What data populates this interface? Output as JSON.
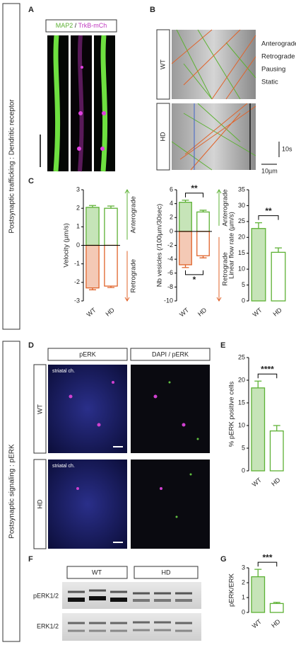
{
  "panel_letters": [
    "A",
    "B",
    "C",
    "D",
    "E",
    "F",
    "G"
  ],
  "side_titles": [
    "Postsynaptic trafficking : Dendritic receptor",
    "Postsynaptic signaling : pERK"
  ],
  "panel_a": {
    "header": [
      "MAP2",
      "/",
      "TrkB-mCh"
    ]
  },
  "panel_b": {
    "rows": [
      "WT",
      "HD"
    ],
    "legend": [
      {
        "label": "Anterograde",
        "color": "#5db134"
      },
      {
        "label": "Retrograde",
        "color": "#e0632a"
      },
      {
        "label": "Pausing",
        "color": "#3f63c9"
      },
      {
        "label": "Static",
        "color": "#666666"
      }
    ],
    "scale_time": "10s",
    "scale_space": "10µm"
  },
  "panel_d": {
    "headers": [
      "pERK",
      "DAPI / pERK"
    ],
    "rows": [
      "WT",
      "HD"
    ],
    "region": "striatal ch."
  },
  "panel_f": {
    "groups": [
      "WT",
      "HD"
    ],
    "rows": [
      "pERK1/2",
      "ERK1/2"
    ]
  },
  "chart_data": [
    {
      "type": "bar",
      "y_label": "Velocity (µm/s)",
      "categories": [
        "WT",
        "HD"
      ],
      "series": [
        {
          "name": "Anterograde",
          "color": "#5db134",
          "values": [
            2.05,
            2.0
          ],
          "errors": [
            0.1,
            0.12
          ]
        },
        {
          "name": "Retrograde",
          "color": "#e0632a",
          "values": [
            -2.3,
            -2.2
          ],
          "errors": [
            0.1,
            0.08
          ]
        }
      ],
      "ylim": [
        -3,
        3
      ],
      "yticks": [
        -3,
        -2,
        -1,
        0,
        1,
        2,
        3
      ],
      "significance": []
    },
    {
      "type": "bar",
      "y_label": "Nb vesicles (/100µm/30sec)",
      "categories": [
        "WT",
        "HD"
      ],
      "series": [
        {
          "name": "Anterograde",
          "color": "#5db134",
          "values": [
            4.2,
            2.8
          ],
          "errors": [
            0.3,
            0.25
          ]
        },
        {
          "name": "Retrograde",
          "color": "#e0632a",
          "values": [
            -4.8,
            -3.5
          ],
          "errors": [
            0.4,
            0.3
          ]
        }
      ],
      "ylim": [
        -10,
        6
      ],
      "yticks": [
        -10,
        -8,
        -6,
        -4,
        -2,
        0,
        2,
        4,
        6
      ],
      "significance": [
        "**",
        "*"
      ]
    },
    {
      "type": "bar",
      "y_label": "Linear flow rate (µm/s)",
      "categories": [
        "WT",
        "HD"
      ],
      "color": "#5db134",
      "values": [
        22.8,
        15.3
      ],
      "errors": [
        1.8,
        1.4
      ],
      "ylim": [
        0,
        35
      ],
      "yticks": [
        0,
        5,
        10,
        15,
        20,
        25,
        30,
        35
      ],
      "significance": [
        "**"
      ]
    },
    {
      "type": "bar",
      "y_label": "% pERK positive cells",
      "categories": [
        "WT",
        "HD"
      ],
      "color": "#5db134",
      "values": [
        18.3,
        8.8
      ],
      "errors": [
        1.5,
        1.2
      ],
      "ylim": [
        0,
        25
      ],
      "yticks": [
        0,
        5,
        10,
        15,
        20,
        25
      ],
      "significance": [
        "****"
      ]
    },
    {
      "type": "bar",
      "y_label": "pERK/ERK",
      "categories": [
        "WT",
        "HD"
      ],
      "color": "#5db134",
      "values": [
        2.4,
        0.6
      ],
      "errors": [
        0.5,
        0.08
      ],
      "ylim": [
        0,
        3
      ],
      "yticks": [
        0,
        1,
        2,
        3
      ],
      "significance": [
        "***"
      ]
    }
  ]
}
